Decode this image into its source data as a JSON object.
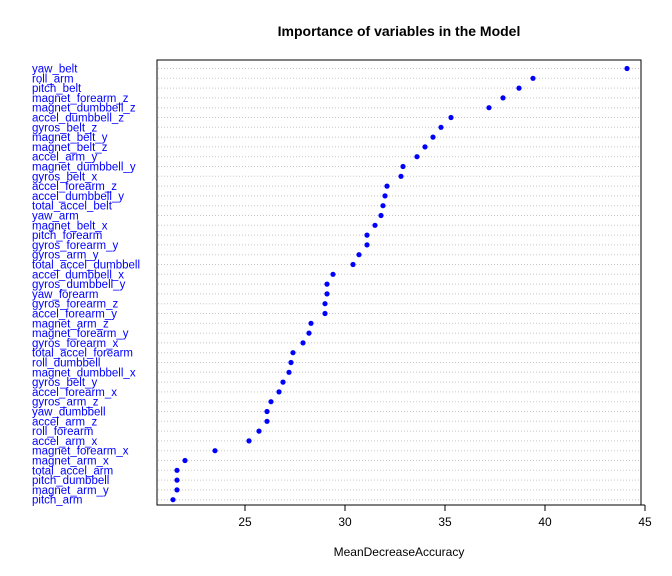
{
  "chart_data": {
    "type": "scatter",
    "title": "Importance of variables in the Model",
    "xlabel": "MeanDecreaseAccuracy",
    "xlim": [
      20.6,
      44.8
    ],
    "xticks": [
      25,
      30,
      35,
      40,
      45
    ],
    "grid": "dotted horizontal",
    "point_color": "#0000ff",
    "label_color": "#0000ff",
    "points": [
      {
        "name": "yaw_belt",
        "value": 44.1
      },
      {
        "name": "roll_arm",
        "value": 39.4
      },
      {
        "name": "pitch_belt",
        "value": 38.7
      },
      {
        "name": "magnet_forearm_z",
        "value": 37.9
      },
      {
        "name": "magnet_dumbbell_z",
        "value": 37.2
      },
      {
        "name": "accel_dumbbell_z",
        "value": 35.3
      },
      {
        "name": "gyros_belt_z",
        "value": 34.8
      },
      {
        "name": "magnet_belt_y",
        "value": 34.4
      },
      {
        "name": "magnet_belt_z",
        "value": 34.0
      },
      {
        "name": "accel_arm_y",
        "value": 33.6
      },
      {
        "name": "magnet_dumbbell_y",
        "value": 32.9
      },
      {
        "name": "gyros_belt_x",
        "value": 32.8
      },
      {
        "name": "accel_forearm_z",
        "value": 32.1
      },
      {
        "name": "accel_dumbbell_y",
        "value": 32.0
      },
      {
        "name": "total_accel_belt",
        "value": 31.9
      },
      {
        "name": "yaw_arm",
        "value": 31.8
      },
      {
        "name": "magnet_belt_x",
        "value": 31.5
      },
      {
        "name": "pitch_forearm",
        "value": 31.1
      },
      {
        "name": "gyros_forearm_y",
        "value": 31.1
      },
      {
        "name": "gyros_arm_y",
        "value": 30.7
      },
      {
        "name": "total_accel_dumbbell",
        "value": 30.4
      },
      {
        "name": "accel_dumbbell_x",
        "value": 29.4
      },
      {
        "name": "gyros_dumbbell_y",
        "value": 29.1
      },
      {
        "name": "yaw_forearm",
        "value": 29.1
      },
      {
        "name": "gyros_forearm_z",
        "value": 29.0
      },
      {
        "name": "accel_forearm_y",
        "value": 29.0
      },
      {
        "name": "magnet_arm_z",
        "value": 28.3
      },
      {
        "name": "magnet_forearm_y",
        "value": 28.2
      },
      {
        "name": "gyros_forearm_x",
        "value": 27.9
      },
      {
        "name": "total_accel_forearm",
        "value": 27.4
      },
      {
        "name": "roll_dumbbell",
        "value": 27.3
      },
      {
        "name": "magnet_dumbbell_x",
        "value": 27.2
      },
      {
        "name": "gyros_belt_y",
        "value": 26.9
      },
      {
        "name": "accel_forearm_x",
        "value": 26.7
      },
      {
        "name": "gyros_arm_z",
        "value": 26.3
      },
      {
        "name": "yaw_dumbbell",
        "value": 26.1
      },
      {
        "name": "accel_arm_z",
        "value": 26.1
      },
      {
        "name": "roll_forearm",
        "value": 25.7
      },
      {
        "name": "accel_arm_x",
        "value": 25.2
      },
      {
        "name": "magnet_forearm_x",
        "value": 23.5
      },
      {
        "name": "magnet_arm_x",
        "value": 22.0
      },
      {
        "name": "total_accel_arm",
        "value": 21.6
      },
      {
        "name": "pitch_dumbbell",
        "value": 21.6
      },
      {
        "name": "magnet_arm_y",
        "value": 21.6
      },
      {
        "name": "pitch_arm",
        "value": 21.4
      }
    ]
  }
}
